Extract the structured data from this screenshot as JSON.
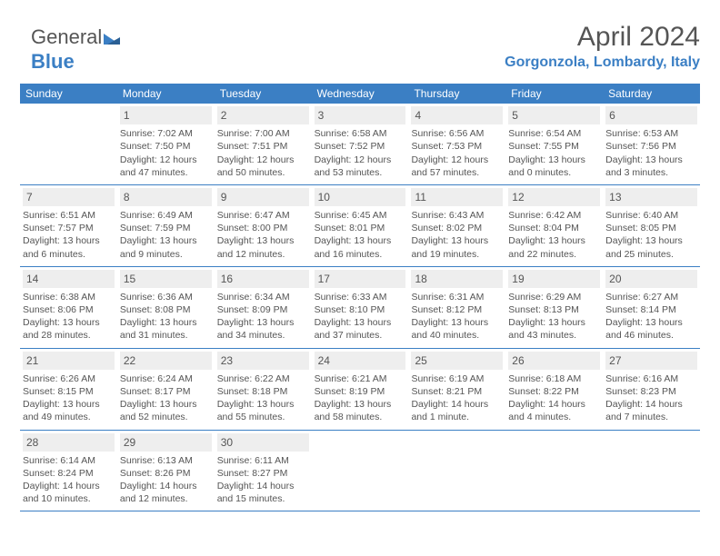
{
  "logo": {
    "part1": "General",
    "part2": "Blue"
  },
  "header": {
    "month_title": "April 2024",
    "location": "Gorgonzola, Lombardy, Italy"
  },
  "colors": {
    "header_bg": "#3b7fc4",
    "header_text": "#ffffff",
    "daynum_bg": "#eeeeee",
    "text": "#555555",
    "rule": "#3b7fc4",
    "page_bg": "#ffffff"
  },
  "day_labels": [
    "Sunday",
    "Monday",
    "Tuesday",
    "Wednesday",
    "Thursday",
    "Friday",
    "Saturday"
  ],
  "weeks": [
    [
      null,
      {
        "n": "1",
        "sunrise": "Sunrise: 7:02 AM",
        "sunset": "Sunset: 7:50 PM",
        "daylight": "Daylight: 12 hours and 47 minutes."
      },
      {
        "n": "2",
        "sunrise": "Sunrise: 7:00 AM",
        "sunset": "Sunset: 7:51 PM",
        "daylight": "Daylight: 12 hours and 50 minutes."
      },
      {
        "n": "3",
        "sunrise": "Sunrise: 6:58 AM",
        "sunset": "Sunset: 7:52 PM",
        "daylight": "Daylight: 12 hours and 53 minutes."
      },
      {
        "n": "4",
        "sunrise": "Sunrise: 6:56 AM",
        "sunset": "Sunset: 7:53 PM",
        "daylight": "Daylight: 12 hours and 57 minutes."
      },
      {
        "n": "5",
        "sunrise": "Sunrise: 6:54 AM",
        "sunset": "Sunset: 7:55 PM",
        "daylight": "Daylight: 13 hours and 0 minutes."
      },
      {
        "n": "6",
        "sunrise": "Sunrise: 6:53 AM",
        "sunset": "Sunset: 7:56 PM",
        "daylight": "Daylight: 13 hours and 3 minutes."
      }
    ],
    [
      {
        "n": "7",
        "sunrise": "Sunrise: 6:51 AM",
        "sunset": "Sunset: 7:57 PM",
        "daylight": "Daylight: 13 hours and 6 minutes."
      },
      {
        "n": "8",
        "sunrise": "Sunrise: 6:49 AM",
        "sunset": "Sunset: 7:59 PM",
        "daylight": "Daylight: 13 hours and 9 minutes."
      },
      {
        "n": "9",
        "sunrise": "Sunrise: 6:47 AM",
        "sunset": "Sunset: 8:00 PM",
        "daylight": "Daylight: 13 hours and 12 minutes."
      },
      {
        "n": "10",
        "sunrise": "Sunrise: 6:45 AM",
        "sunset": "Sunset: 8:01 PM",
        "daylight": "Daylight: 13 hours and 16 minutes."
      },
      {
        "n": "11",
        "sunrise": "Sunrise: 6:43 AM",
        "sunset": "Sunset: 8:02 PM",
        "daylight": "Daylight: 13 hours and 19 minutes."
      },
      {
        "n": "12",
        "sunrise": "Sunrise: 6:42 AM",
        "sunset": "Sunset: 8:04 PM",
        "daylight": "Daylight: 13 hours and 22 minutes."
      },
      {
        "n": "13",
        "sunrise": "Sunrise: 6:40 AM",
        "sunset": "Sunset: 8:05 PM",
        "daylight": "Daylight: 13 hours and 25 minutes."
      }
    ],
    [
      {
        "n": "14",
        "sunrise": "Sunrise: 6:38 AM",
        "sunset": "Sunset: 8:06 PM",
        "daylight": "Daylight: 13 hours and 28 minutes."
      },
      {
        "n": "15",
        "sunrise": "Sunrise: 6:36 AM",
        "sunset": "Sunset: 8:08 PM",
        "daylight": "Daylight: 13 hours and 31 minutes."
      },
      {
        "n": "16",
        "sunrise": "Sunrise: 6:34 AM",
        "sunset": "Sunset: 8:09 PM",
        "daylight": "Daylight: 13 hours and 34 minutes."
      },
      {
        "n": "17",
        "sunrise": "Sunrise: 6:33 AM",
        "sunset": "Sunset: 8:10 PM",
        "daylight": "Daylight: 13 hours and 37 minutes."
      },
      {
        "n": "18",
        "sunrise": "Sunrise: 6:31 AM",
        "sunset": "Sunset: 8:12 PM",
        "daylight": "Daylight: 13 hours and 40 minutes."
      },
      {
        "n": "19",
        "sunrise": "Sunrise: 6:29 AM",
        "sunset": "Sunset: 8:13 PM",
        "daylight": "Daylight: 13 hours and 43 minutes."
      },
      {
        "n": "20",
        "sunrise": "Sunrise: 6:27 AM",
        "sunset": "Sunset: 8:14 PM",
        "daylight": "Daylight: 13 hours and 46 minutes."
      }
    ],
    [
      {
        "n": "21",
        "sunrise": "Sunrise: 6:26 AM",
        "sunset": "Sunset: 8:15 PM",
        "daylight": "Daylight: 13 hours and 49 minutes."
      },
      {
        "n": "22",
        "sunrise": "Sunrise: 6:24 AM",
        "sunset": "Sunset: 8:17 PM",
        "daylight": "Daylight: 13 hours and 52 minutes."
      },
      {
        "n": "23",
        "sunrise": "Sunrise: 6:22 AM",
        "sunset": "Sunset: 8:18 PM",
        "daylight": "Daylight: 13 hours and 55 minutes."
      },
      {
        "n": "24",
        "sunrise": "Sunrise: 6:21 AM",
        "sunset": "Sunset: 8:19 PM",
        "daylight": "Daylight: 13 hours and 58 minutes."
      },
      {
        "n": "25",
        "sunrise": "Sunrise: 6:19 AM",
        "sunset": "Sunset: 8:21 PM",
        "daylight": "Daylight: 14 hours and 1 minute."
      },
      {
        "n": "26",
        "sunrise": "Sunrise: 6:18 AM",
        "sunset": "Sunset: 8:22 PM",
        "daylight": "Daylight: 14 hours and 4 minutes."
      },
      {
        "n": "27",
        "sunrise": "Sunrise: 6:16 AM",
        "sunset": "Sunset: 8:23 PM",
        "daylight": "Daylight: 14 hours and 7 minutes."
      }
    ],
    [
      {
        "n": "28",
        "sunrise": "Sunrise: 6:14 AM",
        "sunset": "Sunset: 8:24 PM",
        "daylight": "Daylight: 14 hours and 10 minutes."
      },
      {
        "n": "29",
        "sunrise": "Sunrise: 6:13 AM",
        "sunset": "Sunset: 8:26 PM",
        "daylight": "Daylight: 14 hours and 12 minutes."
      },
      {
        "n": "30",
        "sunrise": "Sunrise: 6:11 AM",
        "sunset": "Sunset: 8:27 PM",
        "daylight": "Daylight: 14 hours and 15 minutes."
      },
      null,
      null,
      null,
      null
    ]
  ]
}
